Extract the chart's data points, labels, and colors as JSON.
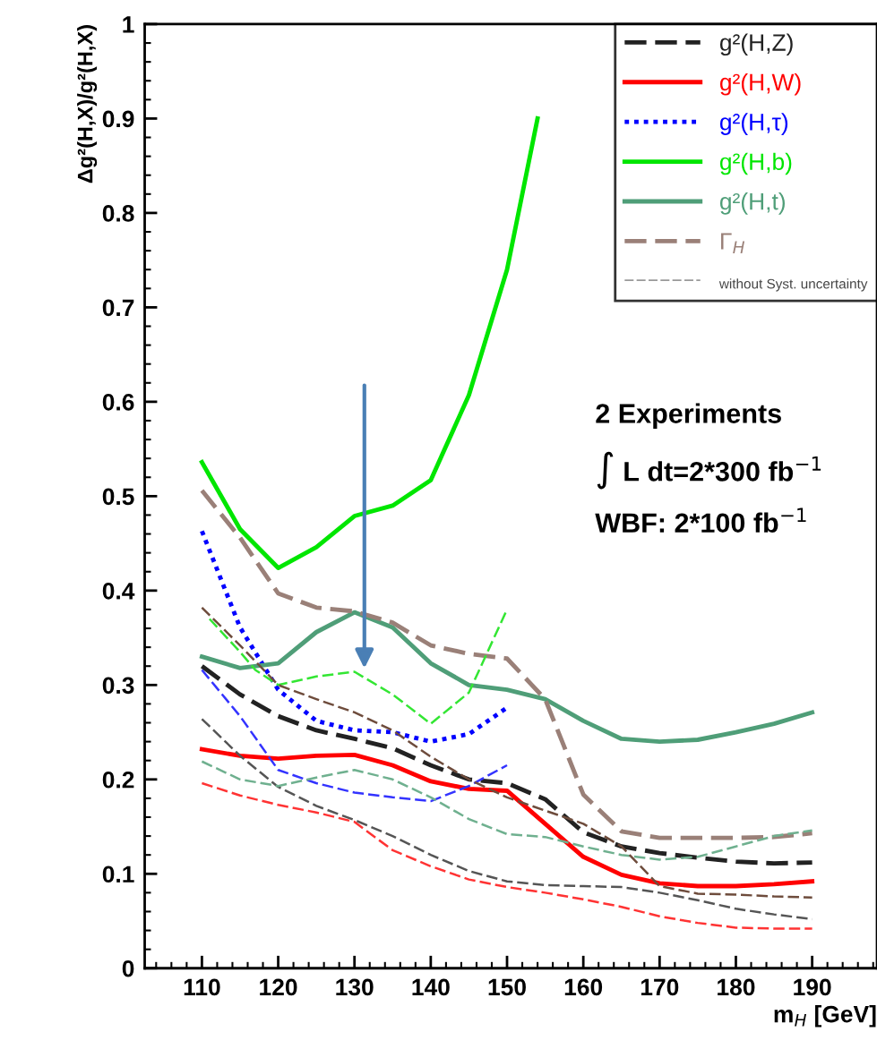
{
  "chart_data": {
    "type": "line",
    "ylabel": "Δg²(H,X)/g²(H,X)",
    "xlabel": "m$_{H}$ [GeV]",
    "xlim": [
      102.5,
      198.5
    ],
    "xticks": [
      110,
      120,
      130,
      140,
      150,
      160,
      170,
      180,
      190
    ],
    "ylim": [
      0,
      1
    ],
    "yticks": [
      0,
      0.1,
      0.2,
      0.3,
      0.4,
      0.5,
      0.6,
      0.7,
      0.8,
      0.9,
      1
    ],
    "grid": false,
    "legend": "top right",
    "series": [
      {
        "name": "g²(H,Z)",
        "color": "#222222",
        "line_style": "dashed",
        "x": [
          110,
          115,
          120,
          125,
          130,
          135,
          140,
          145,
          150,
          155,
          160,
          165,
          170,
          175,
          180,
          185,
          190
        ],
        "values": [
          0.32,
          0.29,
          0.267,
          0.252,
          0.243,
          0.233,
          0.215,
          0.2,
          0.196,
          0.179,
          0.144,
          0.129,
          0.122,
          0.117,
          0.113,
          0.111,
          0.112
        ]
      },
      {
        "name": "g²(H,W)",
        "color": "#ff0000",
        "line_style": "solid",
        "x": [
          110,
          115,
          120,
          125,
          130,
          135,
          140,
          145,
          150,
          155,
          160,
          165,
          170,
          175,
          180,
          185,
          190
        ],
        "values": [
          0.232,
          0.225,
          0.222,
          0.225,
          0.226,
          0.215,
          0.198,
          0.19,
          0.188,
          0.153,
          0.118,
          0.099,
          0.09,
          0.087,
          0.087,
          0.089,
          0.092
        ]
      },
      {
        "name": "g²(H,τ)",
        "color": "#0000ff",
        "line_style": "dotted",
        "x": [
          110,
          115,
          120,
          125,
          130,
          135,
          140,
          145,
          150
        ],
        "values": [
          0.463,
          0.361,
          0.295,
          0.262,
          0.252,
          0.25,
          0.24,
          0.248,
          0.276
        ]
      },
      {
        "name": "g²(H,b)",
        "color": "#00e600",
        "line_style": "solid",
        "x": [
          110,
          115,
          120,
          125,
          130,
          135,
          140,
          145,
          150,
          154
        ],
        "values": [
          0.536,
          0.465,
          0.424,
          0.446,
          0.479,
          0.49,
          0.517,
          0.607,
          0.74,
          0.9
        ]
      },
      {
        "name": "g²(H,t)",
        "color": "#4f9e78",
        "line_style": "solid",
        "x": [
          110,
          115,
          120,
          125,
          130,
          135,
          140,
          145,
          150,
          155,
          160,
          165,
          170,
          175,
          180,
          185,
          190
        ],
        "values": [
          0.33,
          0.318,
          0.323,
          0.356,
          0.377,
          0.361,
          0.323,
          0.3,
          0.295,
          0.285,
          0.262,
          0.243,
          0.24,
          0.242,
          0.25,
          0.259,
          0.271
        ]
      },
      {
        "name": "Γ$_{H}$",
        "color": "#9a8078",
        "line_style": "dashed",
        "x": [
          110,
          115,
          120,
          125,
          130,
          135,
          140,
          145,
          150,
          155,
          160,
          165,
          170,
          175,
          180,
          185,
          190
        ],
        "values": [
          0.506,
          0.456,
          0.397,
          0.382,
          0.378,
          0.366,
          0.342,
          0.333,
          0.328,
          0.285,
          0.184,
          0.145,
          0.138,
          0.138,
          0.138,
          0.139,
          0.143
        ]
      },
      {
        "color": "#555555",
        "line_style": "dashed",
        "x": [
          110,
          115,
          120,
          125,
          130,
          135,
          140,
          145,
          150,
          155,
          160,
          165,
          170,
          175,
          180,
          185,
          190
        ],
        "values": [
          0.264,
          0.225,
          0.192,
          0.172,
          0.157,
          0.14,
          0.12,
          0.103,
          0.092,
          0.088,
          0.087,
          0.086,
          0.08,
          0.072,
          0.063,
          0.057,
          0.052
        ]
      },
      {
        "color": "#ff3333",
        "line_style": "dashed",
        "x": [
          110,
          115,
          120,
          125,
          130,
          135,
          140,
          145,
          150,
          155,
          160,
          165,
          170,
          175,
          180,
          185,
          190
        ],
        "values": [
          0.196,
          0.183,
          0.173,
          0.165,
          0.155,
          0.125,
          0.108,
          0.094,
          0.086,
          0.08,
          0.073,
          0.065,
          0.055,
          0.048,
          0.043,
          0.042,
          0.042
        ]
      },
      {
        "color": "#3333ff",
        "line_style": "dashed",
        "x": [
          110,
          115,
          120,
          125,
          130,
          135,
          140,
          145,
          150
        ],
        "values": [
          0.316,
          0.267,
          0.21,
          0.196,
          0.186,
          0.181,
          0.177,
          0.193,
          0.215
        ]
      },
      {
        "color": "#33e633",
        "line_style": "dashed",
        "x": [
          111,
          115,
          117,
          120,
          125,
          130,
          135,
          140,
          145,
          150
        ],
        "values": [
          0.37,
          0.335,
          0.316,
          0.3,
          0.309,
          0.314,
          0.29,
          0.259,
          0.292,
          0.38
        ]
      },
      {
        "color": "#6fb08f",
        "line_style": "dashed",
        "x": [
          110,
          115,
          120,
          125,
          130,
          135,
          140,
          145,
          150,
          155,
          160,
          165,
          170,
          175,
          180,
          185,
          190
        ],
        "values": [
          0.219,
          0.2,
          0.193,
          0.202,
          0.21,
          0.2,
          0.181,
          0.158,
          0.142,
          0.139,
          0.129,
          0.12,
          0.115,
          0.118,
          0.129,
          0.14,
          0.146
        ]
      },
      {
        "color": "#6e4c3c",
        "line_style": "dashed",
        "x": [
          110,
          115,
          120,
          125,
          130,
          135,
          140,
          145,
          150,
          155,
          160,
          165,
          170,
          175,
          180,
          185,
          190
        ],
        "values": [
          0.382,
          0.342,
          0.3,
          0.285,
          0.271,
          0.252,
          0.224,
          0.2,
          0.181,
          0.167,
          0.153,
          0.129,
          0.087,
          0.079,
          0.078,
          0.076,
          0.075
        ]
      }
    ],
    "annotations": [
      "without Syst. uncertainty",
      "2 Experiments",
      "∫ L dt=2*300 fb$^{−1}$",
      "WBF: 2*100 fb$^{−1}$"
    ]
  }
}
